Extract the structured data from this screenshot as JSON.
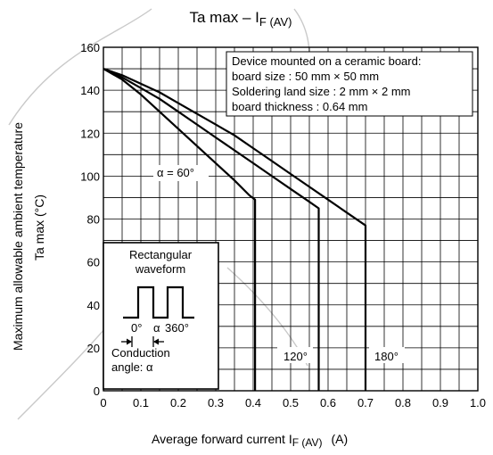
{
  "chart_data": {
    "type": "line",
    "title_main": "Ta max – I",
    "title_sub": "F (AV)",
    "xlabel_main": "Average forward current    I",
    "xlabel_sub": "F (AV)",
    "xlabel_unit": "(A)",
    "ylabel_line1": "Maximum allowable ambient temperature",
    "ylabel_line2": "Ta max    (°C)",
    "xlim": [
      0,
      1.0
    ],
    "ylim": [
      0,
      160
    ],
    "x_ticks": [
      "0",
      "0.1",
      "0.2",
      "0.3",
      "0.4",
      "0.5",
      "0.6",
      "0.7",
      "0.8",
      "0.9",
      "1.0"
    ],
    "y_ticks": [
      "0",
      "20",
      "40",
      "60",
      "80",
      "100",
      "120",
      "140",
      "160"
    ],
    "grid": true,
    "conditions": [
      "Device mounted on a ceramic board:",
      "board size : 50 mm × 50 mm",
      "Soldering land size : 2 mm × 2 mm",
      "board thickness : 0.64 mm"
    ],
    "series": [
      {
        "name": "α = 60°",
        "x": [
          0,
          0.05,
          0.1,
          0.15,
          0.2,
          0.25,
          0.3,
          0.35,
          0.39,
          0.405,
          0.405
        ],
        "y": [
          150,
          145,
          138,
          130,
          122,
          114,
          106,
          98,
          91,
          89,
          0
        ]
      },
      {
        "name": "120°",
        "x": [
          0,
          0.05,
          0.1,
          0.15,
          0.2,
          0.25,
          0.3,
          0.35,
          0.4,
          0.45,
          0.5,
          0.55,
          0.575,
          0.575
        ],
        "y": [
          150,
          146,
          141,
          136,
          130,
          124,
          118,
          112,
          106,
          100,
          94,
          88,
          85,
          0
        ]
      },
      {
        "name": "180°",
        "x": [
          0,
          0.05,
          0.1,
          0.15,
          0.2,
          0.25,
          0.3,
          0.35,
          0.4,
          0.45,
          0.5,
          0.55,
          0.6,
          0.65,
          0.7,
          0.7
        ],
        "y": [
          150,
          147,
          143,
          139,
          134,
          129,
          124,
          119,
          113,
          107,
          101,
          95,
          89,
          83,
          77,
          0
        ]
      }
    ],
    "inset": {
      "title": [
        "Rectangular",
        "waveform"
      ],
      "waveform_labels": [
        "0°",
        "α",
        "360°"
      ],
      "caption": [
        "Conduction",
        "angle: α"
      ]
    }
  }
}
